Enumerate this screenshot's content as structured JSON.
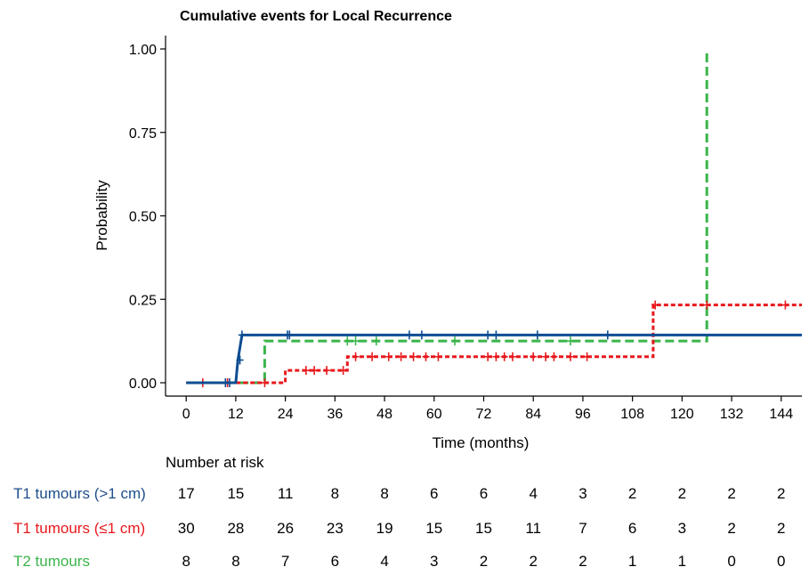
{
  "chart_data": {
    "type": "line",
    "subtype": "kaplan-meier cumulative incidence step plot",
    "title": "Cumulative events for Local Recurrence",
    "xlabel": "Time (months)",
    "ylabel": "Probability",
    "xlim": [
      -5,
      149
    ],
    "ylim": [
      -0.04,
      1.04
    ],
    "x_ticks": [
      0,
      12,
      24,
      36,
      48,
      60,
      72,
      84,
      96,
      108,
      120,
      132,
      144
    ],
    "x_tick_labels": [
      "0",
      "12",
      "24",
      "36",
      "48",
      "60",
      "72",
      "84",
      "96",
      "108",
      "120",
      "132",
      "144"
    ],
    "y_ticks": [
      0,
      0.25,
      0.5,
      0.75,
      1
    ],
    "y_tick_labels": [
      "0.00",
      "0.25",
      "0.50",
      "0.75",
      "1.00"
    ],
    "grid": false,
    "series": [
      {
        "name": "T1 tumours (>1 cm)",
        "color": "#0e4d92",
        "dash": "solid",
        "steps": [
          [
            0,
            0
          ],
          [
            12,
            0
          ],
          [
            12.5,
            0.068
          ],
          [
            13.5,
            0.143
          ],
          [
            149,
            0.143
          ]
        ],
        "censor_x": [
          9.5,
          10.5,
          13,
          13.5,
          24.5,
          25,
          54,
          57,
          73,
          75,
          85,
          102
        ]
      },
      {
        "name": "T1 tumours (≤1 cm)",
        "color": "#e8191d",
        "dash": "dotted",
        "steps": [
          [
            0,
            0
          ],
          [
            24,
            0
          ],
          [
            24,
            0.037
          ],
          [
            39,
            0.037
          ],
          [
            39,
            0.078
          ],
          [
            113,
            0.078
          ],
          [
            113,
            0.233
          ],
          [
            149,
            0.233
          ]
        ],
        "censor_x": [
          4,
          10,
          19,
          29,
          31,
          34,
          38,
          41,
          45,
          49,
          52,
          55,
          58,
          61,
          73,
          75,
          77,
          79,
          84,
          87,
          89,
          93,
          97,
          113.5,
          126,
          145
        ]
      },
      {
        "name": "T2 tumours",
        "color": "#3ab54a",
        "dash": "dashed",
        "steps": [
          [
            0,
            0
          ],
          [
            19,
            0
          ],
          [
            19,
            0.125
          ],
          [
            126,
            0.125
          ],
          [
            126,
            1.0
          ]
        ],
        "censor_x": [
          39,
          41,
          46,
          65,
          93
        ]
      }
    ],
    "risk_table": {
      "heading": "Number at risk",
      "rows": [
        {
          "label": "T1 tumours (>1 cm)",
          "color": "#1f4e8c",
          "values": [
            "17",
            "15",
            "11",
            "8",
            "8",
            "6",
            "6",
            "4",
            "3",
            "2",
            "2",
            "2",
            "2"
          ]
        },
        {
          "label": "T1 tumours (≤1 cm)",
          "color": "#e8191d",
          "values": [
            "30",
            "28",
            "26",
            "23",
            "19",
            "15",
            "15",
            "11",
            "7",
            "6",
            "3",
            "2",
            "2"
          ]
        },
        {
          "label": "T2 tumours",
          "color": "#3ab54a",
          "values": [
            "8",
            "8",
            "7",
            "6",
            "4",
            "3",
            "2",
            "2",
            "2",
            "1",
            "1",
            "0",
            "0"
          ]
        }
      ]
    }
  }
}
